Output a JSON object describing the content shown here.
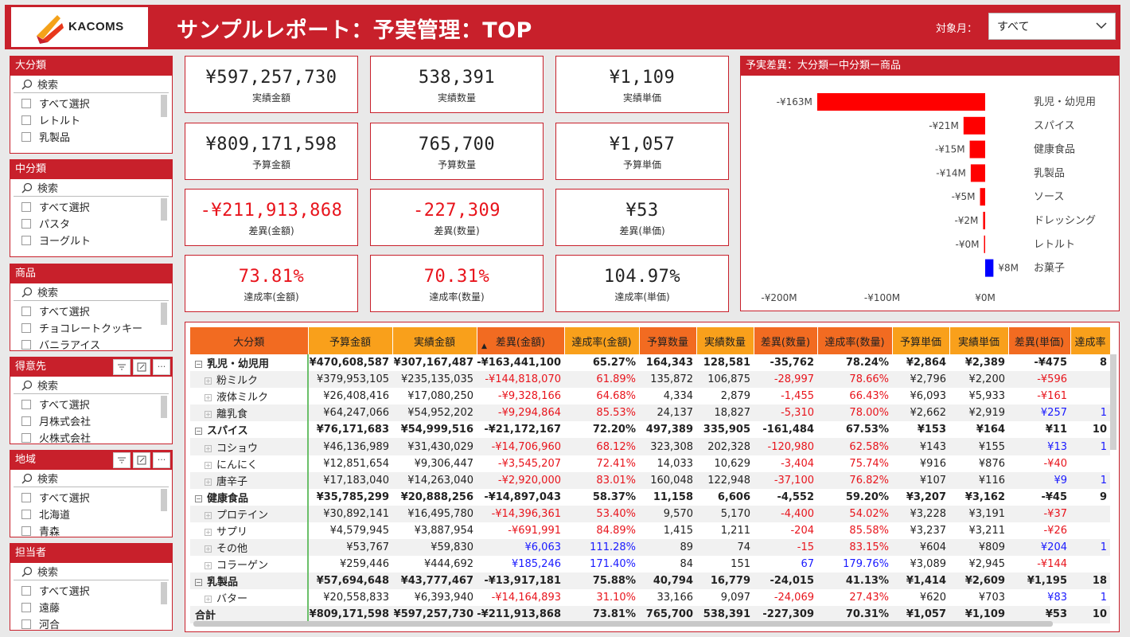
{
  "header": {
    "logo_text": "KACOMS",
    "title": "サンプルレポート：予実管理：TOP",
    "month_label": "対象月：",
    "month_value": "すべて"
  },
  "colors": {
    "accent": "#c8202b",
    "negative": "#e8141c",
    "positive": "#1a1aff",
    "bar_neg": "#ff0000",
    "bar_pos": "#0000ff"
  },
  "slicers": [
    {
      "title": "大分類",
      "search": "検索",
      "items": [
        "すべて選択",
        "レトルト",
        "乳製品"
      ]
    },
    {
      "title": "中分類",
      "search": "検索",
      "items": [
        "すべて選択",
        "パスタ",
        "ヨーグルト"
      ]
    },
    {
      "title": "商品",
      "search": "検索",
      "items": [
        "すべて選択",
        "チョコレートクッキー",
        "バニラアイス"
      ]
    },
    {
      "title": "得意先",
      "search": "検索",
      "items": [
        "すべて選択",
        "月株式会社",
        "火株式会社"
      ]
    },
    {
      "title": "地域",
      "search": "検索",
      "items": [
        "すべて選択",
        "北海道",
        "青森"
      ]
    },
    {
      "title": "担当者",
      "search": "検索",
      "items": [
        "すべて選択",
        "遠藤",
        "河合"
      ]
    }
  ],
  "kpis": [
    {
      "value": "¥597,257,730",
      "label": "実績金額"
    },
    {
      "value": "538,391",
      "label": "実績数量"
    },
    {
      "value": "¥1,109",
      "label": "実績単価"
    },
    {
      "value": "¥809,171,598",
      "label": "予算金額"
    },
    {
      "value": "765,700",
      "label": "予算数量"
    },
    {
      "value": "¥1,057",
      "label": "予算単価"
    },
    {
      "value": "-¥211,913,868",
      "label": "差異(金額)"
    },
    {
      "value": "-227,309",
      "label": "差異(数量)"
    },
    {
      "value": "¥53",
      "label": "差異(単価)"
    },
    {
      "value": "73.81%",
      "label": "達成率(金額)"
    },
    {
      "value": "70.31%",
      "label": "達成率(数量)"
    },
    {
      "value": "104.97%",
      "label": "達成率(単価)"
    }
  ],
  "chart_data": {
    "type": "bar",
    "title": "予実差異：大分類ー中分類ー商品",
    "orientation": "horizontal",
    "categories": [
      "乳児・幼児用",
      "スパイス",
      "健康食品",
      "乳製品",
      "ソース",
      "ドレッシング",
      "レトルト",
      "お菓子"
    ],
    "values": [
      -163,
      -21,
      -15,
      -14,
      -5,
      -2,
      -0.3,
      8
    ],
    "data_labels": [
      "-¥163M",
      "-¥21M",
      "-¥15M",
      "-¥14M",
      "-¥5M",
      "-¥2M",
      "-¥0M",
      "¥8M"
    ],
    "xlim": [
      -200,
      0
    ],
    "xticks": [
      "-¥200M",
      "-¥100M",
      "¥0M"
    ],
    "unit": "M"
  },
  "table": {
    "columns": [
      "大分類",
      "予算金額",
      "実績金額",
      "差異(金額)",
      "達成率(金額)",
      "予算数量",
      "実績数量",
      "差異(数量)",
      "達成率(数量)",
      "予算単価",
      "実績単価",
      "差異(単価)",
      "達成率"
    ],
    "rows": [
      {
        "type": "cat",
        "name": "乳児・幼児用",
        "cells": [
          "¥470,608,587",
          "¥307,167,487",
          "-¥163,441,100",
          "65.27%",
          "164,343",
          "128,581",
          "-35,762",
          "78.24%",
          "¥2,864",
          "¥2,389",
          "-¥475",
          "8"
        ]
      },
      {
        "type": "sub",
        "name": "粉ミルク",
        "cells": [
          "¥379,953,105",
          "¥235,135,035",
          "-¥144,818,070",
          "61.89%",
          "135,872",
          "106,875",
          "-28,997",
          "78.66%",
          "¥2,796",
          "¥2,200",
          "-¥596",
          ""
        ]
      },
      {
        "type": "sub",
        "name": "液体ミルク",
        "cells": [
          "¥26,408,416",
          "¥17,080,250",
          "-¥9,328,166",
          "64.68%",
          "4,334",
          "2,879",
          "-1,455",
          "66.43%",
          "¥6,093",
          "¥5,933",
          "-¥161",
          ""
        ]
      },
      {
        "type": "sub",
        "name": "離乳食",
        "cells": [
          "¥64,247,066",
          "¥54,952,202",
          "-¥9,294,864",
          "85.53%",
          "24,137",
          "18,827",
          "-5,310",
          "78.00%",
          "¥2,662",
          "¥2,919",
          "¥257",
          "1"
        ]
      },
      {
        "type": "cat",
        "name": "スパイス",
        "cells": [
          "¥76,171,683",
          "¥54,999,516",
          "-¥21,172,167",
          "72.20%",
          "497,389",
          "335,905",
          "-161,484",
          "67.53%",
          "¥153",
          "¥164",
          "¥11",
          "10"
        ]
      },
      {
        "type": "sub",
        "name": "コショウ",
        "cells": [
          "¥46,136,989",
          "¥31,430,029",
          "-¥14,706,960",
          "68.12%",
          "323,308",
          "202,328",
          "-120,980",
          "62.58%",
          "¥143",
          "¥155",
          "¥13",
          "1"
        ]
      },
      {
        "type": "sub",
        "name": "にんにく",
        "cells": [
          "¥12,851,654",
          "¥9,306,447",
          "-¥3,545,207",
          "72.41%",
          "14,033",
          "10,629",
          "-3,404",
          "75.74%",
          "¥916",
          "¥876",
          "-¥40",
          ""
        ]
      },
      {
        "type": "sub",
        "name": "唐辛子",
        "cells": [
          "¥17,183,040",
          "¥14,263,040",
          "-¥2,920,000",
          "83.01%",
          "160,048",
          "122,948",
          "-37,100",
          "76.82%",
          "¥107",
          "¥116",
          "¥9",
          "1"
        ]
      },
      {
        "type": "cat",
        "name": "健康食品",
        "cells": [
          "¥35,785,299",
          "¥20,888,256",
          "-¥14,897,043",
          "58.37%",
          "11,158",
          "6,606",
          "-4,552",
          "59.20%",
          "¥3,207",
          "¥3,162",
          "-¥45",
          "9"
        ]
      },
      {
        "type": "sub",
        "name": "プロテイン",
        "cells": [
          "¥30,892,141",
          "¥16,495,780",
          "-¥14,396,361",
          "53.40%",
          "9,570",
          "5,170",
          "-4,400",
          "54.02%",
          "¥3,228",
          "¥3,191",
          "-¥37",
          ""
        ]
      },
      {
        "type": "sub",
        "name": "サプリ",
        "cells": [
          "¥4,579,945",
          "¥3,887,954",
          "-¥691,991",
          "84.89%",
          "1,415",
          "1,211",
          "-204",
          "85.58%",
          "¥3,237",
          "¥3,211",
          "-¥26",
          ""
        ]
      },
      {
        "type": "sub",
        "name": "その他",
        "cells": [
          "¥53,767",
          "¥59,830",
          "¥6,063",
          "111.28%",
          "89",
          "74",
          "-15",
          "83.15%",
          "¥604",
          "¥809",
          "¥204",
          "1"
        ]
      },
      {
        "type": "sub",
        "name": "コラーゲン",
        "cells": [
          "¥259,446",
          "¥444,692",
          "¥185,246",
          "171.40%",
          "84",
          "151",
          "67",
          "179.76%",
          "¥3,089",
          "¥2,945",
          "-¥144",
          ""
        ]
      },
      {
        "type": "cat",
        "name": "乳製品",
        "cells": [
          "¥57,694,648",
          "¥43,777,467",
          "-¥13,917,181",
          "75.88%",
          "40,794",
          "16,779",
          "-24,015",
          "41.13%",
          "¥1,414",
          "¥2,609",
          "¥1,195",
          "18"
        ]
      },
      {
        "type": "sub",
        "name": "バター",
        "cells": [
          "¥20,558,833",
          "¥6,393,940",
          "-¥14,164,893",
          "31.10%",
          "33,166",
          "9,097",
          "-24,069",
          "27.43%",
          "¥620",
          "¥703",
          "¥83",
          "1"
        ]
      },
      {
        "type": "total",
        "name": "合計",
        "cells": [
          "¥809,171,598",
          "¥597,257,730",
          "-¥211,913,868",
          "73.81%",
          "765,700",
          "538,391",
          "-227,309",
          "70.31%",
          "¥1,057",
          "¥1,109",
          "¥53",
          "10"
        ]
      }
    ]
  }
}
